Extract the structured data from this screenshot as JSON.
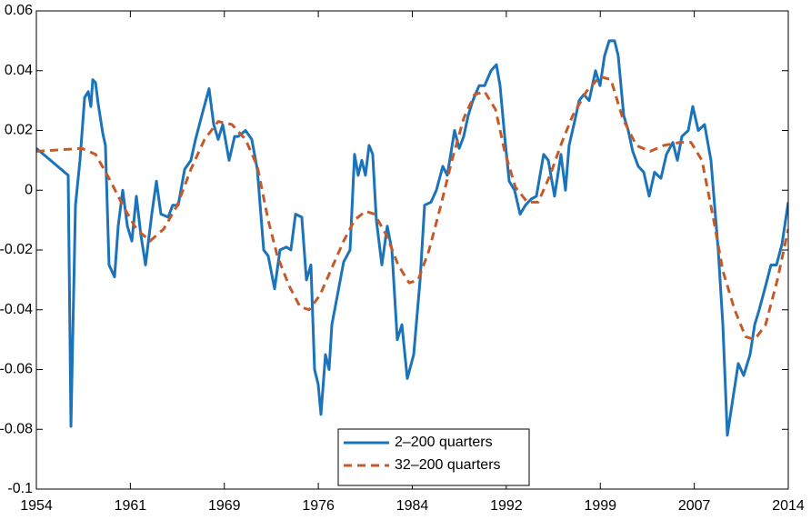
{
  "chart_data": {
    "type": "line",
    "xlim": [
      1954,
      2014
    ],
    "xticks": [
      1954,
      {
        "value": 1961.5,
        "label": "1961"
      },
      1969,
      {
        "value": 1976.5,
        "label": "1976"
      },
      1984,
      {
        "value": 1991.5,
        "label": "1992"
      },
      1999,
      {
        "value": 2006.5,
        "label": "2007"
      },
      2014
    ],
    "ylim": [
      -0.1,
      0.06
    ],
    "yticks": [
      -0.1,
      -0.08,
      -0.06,
      -0.04,
      -0.02,
      0,
      0.02,
      0.04,
      0.06
    ],
    "legend": "bottom",
    "series": [
      {
        "name": "2–200 quarters",
        "color": "#1b74b9",
        "style": "solid",
        "x": [
          1954,
          1956.54,
          1956.76,
          1957.12,
          1957.48,
          1957.85,
          1958.14,
          1958.35,
          1958.5,
          1958.72,
          1958.93,
          1959.3,
          1959.51,
          1959.8,
          1960.24,
          1960.53,
          1960.89,
          1961.26,
          1961.62,
          1961.98,
          1962.34,
          1962.71,
          1963.21,
          1963.58,
          1963.94,
          1964.52,
          1964.88,
          1965.32,
          1965.83,
          1966.33,
          1966.7,
          1967.2,
          1967.78,
          1968.15,
          1968.51,
          1968.87,
          1969.38,
          1969.82,
          1970.11,
          1970.69,
          1971.19,
          1971.63,
          1972.14,
          1972.5,
          1973.01,
          1973.44,
          1973.95,
          1974.31,
          1974.68,
          1975.18,
          1975.55,
          1975.91,
          1976.2,
          1976.49,
          1976.71,
          1977.07,
          1977.36,
          1977.58,
          1977.94,
          1978.52,
          1979.03,
          1979.39,
          1979.68,
          1979.97,
          1980.26,
          1980.55,
          1980.84,
          1981.13,
          1981.57,
          1982.0,
          1982.37,
          1982.8,
          1983.17,
          1983.6,
          1984.11,
          1984.62,
          1984.98,
          1985.49,
          1985.92,
          1986.43,
          1986.79,
          1987.37,
          1987.74,
          1988.1,
          1988.46,
          1988.83,
          1989.33,
          1989.77,
          1990.28,
          1990.71,
          1991.0,
          1991.37,
          1991.73,
          1992.16,
          1992.6,
          1993.03,
          1993.47,
          1993.9,
          1994.48,
          1994.85,
          1995.35,
          1995.86,
          1996.22,
          1996.51,
          1996.95,
          1997.31,
          1997.68,
          1998.11,
          1998.62,
          1998.98,
          1999.34,
          1999.71,
          2000.14,
          2000.43,
          2000.87,
          2001.23,
          2001.59,
          2002.03,
          2002.47,
          2002.9,
          2003.33,
          2003.84,
          2004.28,
          2004.79,
          2005.15,
          2005.51,
          2006.02,
          2006.38,
          2006.82,
          2007.32,
          2007.83,
          2008.41,
          2008.78,
          2009.14,
          2009.57,
          2010.01,
          2010.44,
          2010.95,
          2011.32,
          2011.68,
          2012.19,
          2012.62,
          2013.06,
          2013.5,
          2014.0
        ],
        "values": [
          0.014,
          0.005,
          -0.079,
          -0.005,
          0.01,
          0.031,
          0.033,
          0.028,
          0.037,
          0.036,
          0.029,
          0.019,
          0.015,
          -0.025,
          -0.029,
          -0.012,
          0.0,
          -0.012,
          -0.017,
          -0.002,
          -0.015,
          -0.025,
          -0.008,
          0.003,
          -0.008,
          -0.009,
          -0.005,
          -0.005,
          0.007,
          0.01,
          0.017,
          0.025,
          0.034,
          0.022,
          0.017,
          0.022,
          0.01,
          0.018,
          0.018,
          0.02,
          0.017,
          0.007,
          -0.02,
          -0.022,
          -0.033,
          -0.02,
          -0.019,
          -0.02,
          -0.008,
          -0.009,
          -0.03,
          -0.025,
          -0.06,
          -0.065,
          -0.075,
          -0.055,
          -0.06,
          -0.045,
          -0.037,
          -0.024,
          -0.02,
          0.012,
          0.005,
          0.01,
          0.005,
          0.015,
          0.012,
          -0.01,
          -0.025,
          -0.012,
          -0.02,
          -0.05,
          -0.045,
          -0.063,
          -0.055,
          -0.03,
          -0.005,
          -0.004,
          0.0,
          0.008,
          0.005,
          0.02,
          0.014,
          0.018,
          0.025,
          0.03,
          0.035,
          0.035,
          0.04,
          0.042,
          0.035,
          0.018,
          0.003,
          0.0,
          -0.008,
          -0.005,
          -0.003,
          -0.002,
          0.012,
          0.01,
          -0.002,
          0.012,
          0.0,
          0.015,
          0.023,
          0.03,
          0.032,
          0.03,
          0.04,
          0.035,
          0.045,
          0.05,
          0.05,
          0.045,
          0.025,
          0.02,
          0.013,
          0.008,
          0.006,
          -0.002,
          0.006,
          0.004,
          0.012,
          0.016,
          0.01,
          0.018,
          0.02,
          0.028,
          0.02,
          0.022,
          0.01,
          -0.02,
          -0.045,
          -0.082,
          -0.07,
          -0.058,
          -0.062,
          -0.055,
          -0.045,
          -0.04,
          -0.032,
          -0.025,
          -0.025,
          -0.018,
          -0.004
        ]
      },
      {
        "name": "32–200 quarters",
        "color": "#c45a2a",
        "style": "dashed",
        "x": [
          1954,
          1957.63,
          1958.72,
          1959.8,
          1960.89,
          1961.98,
          1963.07,
          1964.16,
          1965.25,
          1966.33,
          1967.42,
          1968.51,
          1969.6,
          1970.69,
          1971.63,
          1972.5,
          1973.23,
          1974.17,
          1975.04,
          1975.77,
          1976.64,
          1977.58,
          1978.52,
          1979.39,
          1980.26,
          1980.99,
          1981.93,
          1982.87,
          1983.75,
          1984.47,
          1985.34,
          1986.28,
          1987.16,
          1988.1,
          1988.97,
          1989.77,
          1990.64,
          1991.37,
          1992.23,
          1993.18,
          1994.05,
          1994.99,
          1995.93,
          1996.8,
          1997.89,
          1998.98,
          1999.85,
          2000.79,
          2001.88,
          2002.97,
          2004.06,
          2005.37,
          2006.24,
          2007.11,
          2008.05,
          2008.78,
          2009.72,
          2010.59,
          2011.32,
          2012.19,
          2013.13,
          2014.0
        ],
        "values": [
          0.013,
          0.014,
          0.012,
          0.004,
          -0.005,
          -0.013,
          -0.017,
          -0.013,
          -0.005,
          0.007,
          0.017,
          0.023,
          0.022,
          0.017,
          0.008,
          -0.01,
          -0.022,
          -0.032,
          -0.039,
          -0.04,
          -0.035,
          -0.026,
          -0.017,
          -0.01,
          -0.007,
          -0.008,
          -0.015,
          -0.025,
          -0.031,
          -0.03,
          -0.02,
          -0.005,
          0.01,
          0.024,
          0.032,
          0.033,
          0.027,
          0.013,
          0.001,
          -0.004,
          -0.004,
          0.005,
          0.016,
          0.025,
          0.033,
          0.038,
          0.037,
          0.024,
          0.015,
          0.013,
          0.015,
          0.016,
          0.016,
          0.01,
          -0.01,
          -0.027,
          -0.04,
          -0.049,
          -0.05,
          -0.045,
          -0.03,
          -0.013
        ]
      }
    ]
  }
}
